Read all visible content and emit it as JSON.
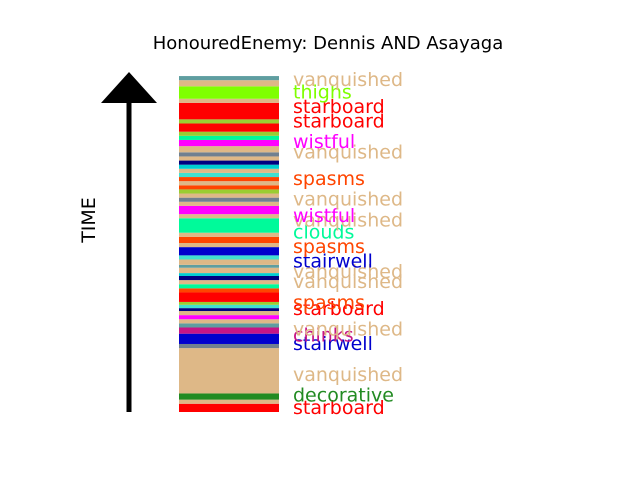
{
  "chart_data": {
    "type": "timeline-stack",
    "title": "HonouredEnemy: Dennis AND Asayaga",
    "ylabel": "TIME",
    "colors": {
      "vanquished": "#deb887",
      "thighs": "#7fff00",
      "starboard": "#ff0000",
      "wistful": "#ff00ff",
      "spasms": "#ff4500",
      "clouds": "#00fa9a",
      "stairwell": "#0000cd",
      "decorative": "#228b22",
      "chinks": "#c71585",
      "teal": "#5f9ea0",
      "navy": "#000080",
      "cyan": "#00ced1",
      "yellowgreen": "#9acd32",
      "aqua": "#40e0d0",
      "gray": "#708090"
    },
    "bands": [
      {
        "kind": "starboard",
        "from": 0.0,
        "to": 2.0
      },
      {
        "kind": "vanquished",
        "from": 2.0,
        "to": 3.0
      },
      {
        "kind": "decorative",
        "from": 3.0,
        "to": 4.5
      },
      {
        "kind": "vanquished",
        "from": 4.5,
        "to": 15.5
      },
      {
        "kind": "gray",
        "from": 15.5,
        "to": 16.5
      },
      {
        "kind": "stairwell",
        "from": 16.5,
        "to": 19.0
      },
      {
        "kind": "chinks",
        "from": 19.0,
        "to": 20.5
      },
      {
        "kind": "teal",
        "from": 20.5,
        "to": 21.5
      },
      {
        "kind": "vanquished",
        "from": 21.5,
        "to": 22.5
      },
      {
        "kind": "wistful",
        "from": 22.5,
        "to": 23.5
      },
      {
        "kind": "vanquished",
        "from": 23.5,
        "to": 24.5
      },
      {
        "kind": "navy",
        "from": 24.5,
        "to": 25.2
      },
      {
        "kind": "aqua",
        "from": 25.2,
        "to": 26.0
      },
      {
        "kind": "yellowgreen",
        "from": 26.0,
        "to": 26.7
      },
      {
        "kind": "starboard",
        "from": 26.7,
        "to": 29.0
      },
      {
        "kind": "spasms",
        "from": 29.0,
        "to": 30.0
      },
      {
        "kind": "clouds",
        "from": 30.0,
        "to": 31.0
      },
      {
        "kind": "vanquished",
        "from": 31.0,
        "to": 32.0
      },
      {
        "kind": "navy",
        "from": 32.0,
        "to": 33.0
      },
      {
        "kind": "cyan",
        "from": 33.0,
        "to": 33.7
      },
      {
        "kind": "vanquished",
        "from": 33.7,
        "to": 35.0
      },
      {
        "kind": "teal",
        "from": 35.0,
        "to": 35.7
      },
      {
        "kind": "vanquished",
        "from": 35.7,
        "to": 37.0
      },
      {
        "kind": "aqua",
        "from": 37.0,
        "to": 38.0
      },
      {
        "kind": "stairwell",
        "from": 38.0,
        "to": 40.0
      },
      {
        "kind": "vanquished",
        "from": 40.0,
        "to": 41.0
      },
      {
        "kind": "spasms",
        "from": 41.0,
        "to": 42.5
      },
      {
        "kind": "vanquished",
        "from": 42.5,
        "to": 43.5
      },
      {
        "kind": "clouds",
        "from": 43.5,
        "to": 47.0
      },
      {
        "kind": "vanquished",
        "from": 47.0,
        "to": 48.0
      },
      {
        "kind": "wistful",
        "from": 48.0,
        "to": 50.0
      },
      {
        "kind": "vanquished",
        "from": 50.0,
        "to": 51.0
      },
      {
        "kind": "gray",
        "from": 51.0,
        "to": 52.0
      },
      {
        "kind": "vanquished",
        "from": 52.0,
        "to": 53.0
      },
      {
        "kind": "yellowgreen",
        "from": 53.0,
        "to": 54.0
      },
      {
        "kind": "spasms",
        "from": 54.0,
        "to": 55.0
      },
      {
        "kind": "vanquished",
        "from": 55.0,
        "to": 56.0
      },
      {
        "kind": "spasms",
        "from": 56.0,
        "to": 57.0
      },
      {
        "kind": "aqua",
        "from": 57.0,
        "to": 58.0
      },
      {
        "kind": "vanquished",
        "from": 58.0,
        "to": 59.0
      },
      {
        "kind": "cyan",
        "from": 59.0,
        "to": 60.0
      },
      {
        "kind": "navy",
        "from": 60.0,
        "to": 61.0
      },
      {
        "kind": "vanquished",
        "from": 61.0,
        "to": 62.0
      },
      {
        "kind": "gray",
        "from": 62.0,
        "to": 63.0
      },
      {
        "kind": "vanquished",
        "from": 63.0,
        "to": 64.5
      },
      {
        "kind": "wistful",
        "from": 64.5,
        "to": 66.0
      },
      {
        "kind": "clouds",
        "from": 66.0,
        "to": 67.0
      },
      {
        "kind": "yellowgreen",
        "from": 67.0,
        "to": 68.0
      },
      {
        "kind": "starboard",
        "from": 68.0,
        "to": 70.0
      },
      {
        "kind": "yellowgreen",
        "from": 70.0,
        "to": 71.0
      },
      {
        "kind": "starboard",
        "from": 71.0,
        "to": 75.0
      },
      {
        "kind": "vanquished",
        "from": 75.0,
        "to": 76.0
      },
      {
        "kind": "thighs",
        "from": 76.0,
        "to": 79.0
      },
      {
        "kind": "vanquished",
        "from": 79.0,
        "to": 80.5
      },
      {
        "kind": "teal",
        "from": 80.5,
        "to": 81.5
      }
    ],
    "labels": [
      {
        "text": "starboard",
        "kind": "starboard",
        "at": 1.0
      },
      {
        "text": "decorative",
        "kind": "decorative",
        "at": 4.0
      },
      {
        "text": "vanquished",
        "kind": "vanquished",
        "at": 9.0
      },
      {
        "text": "stairwell",
        "kind": "stairwell",
        "at": 16.5
      },
      {
        "text": "chinks",
        "kind": "chinks",
        "at": 18.5
      },
      {
        "text": "vanquished",
        "kind": "vanquished",
        "at": 20.0
      },
      {
        "text": "starboard",
        "kind": "starboard",
        "at": 25.0
      },
      {
        "text": "spasms",
        "kind": "spasms",
        "at": 26.5
      },
      {
        "text": "vanquished",
        "kind": "vanquished",
        "at": 31.5
      },
      {
        "text": "vanquished",
        "kind": "vanquished",
        "at": 34.0
      },
      {
        "text": "stairwell",
        "kind": "stairwell",
        "at": 36.5
      },
      {
        "text": "spasms",
        "kind": "spasms",
        "at": 40.0
      },
      {
        "text": "clouds",
        "kind": "clouds",
        "at": 43.5
      },
      {
        "text": "vanquished",
        "kind": "vanquished",
        "at": 46.5
      },
      {
        "text": "wistful",
        "kind": "wistful",
        "at": 47.5
      },
      {
        "text": "vanquished",
        "kind": "vanquished",
        "at": 51.5
      },
      {
        "text": "spasms",
        "kind": "spasms",
        "at": 56.5
      },
      {
        "text": "vanquished",
        "kind": "vanquished",
        "at": 63.0
      },
      {
        "text": "wistful",
        "kind": "wistful",
        "at": 65.5
      },
      {
        "text": "starboard",
        "kind": "starboard",
        "at": 70.5
      },
      {
        "text": "starboard",
        "kind": "starboard",
        "at": 74.0
      },
      {
        "text": "thighs",
        "kind": "thighs",
        "at": 77.5
      },
      {
        "text": "vanquished",
        "kind": "vanquished",
        "at": 80.5
      }
    ],
    "ylim": [
      0,
      82
    ]
  }
}
